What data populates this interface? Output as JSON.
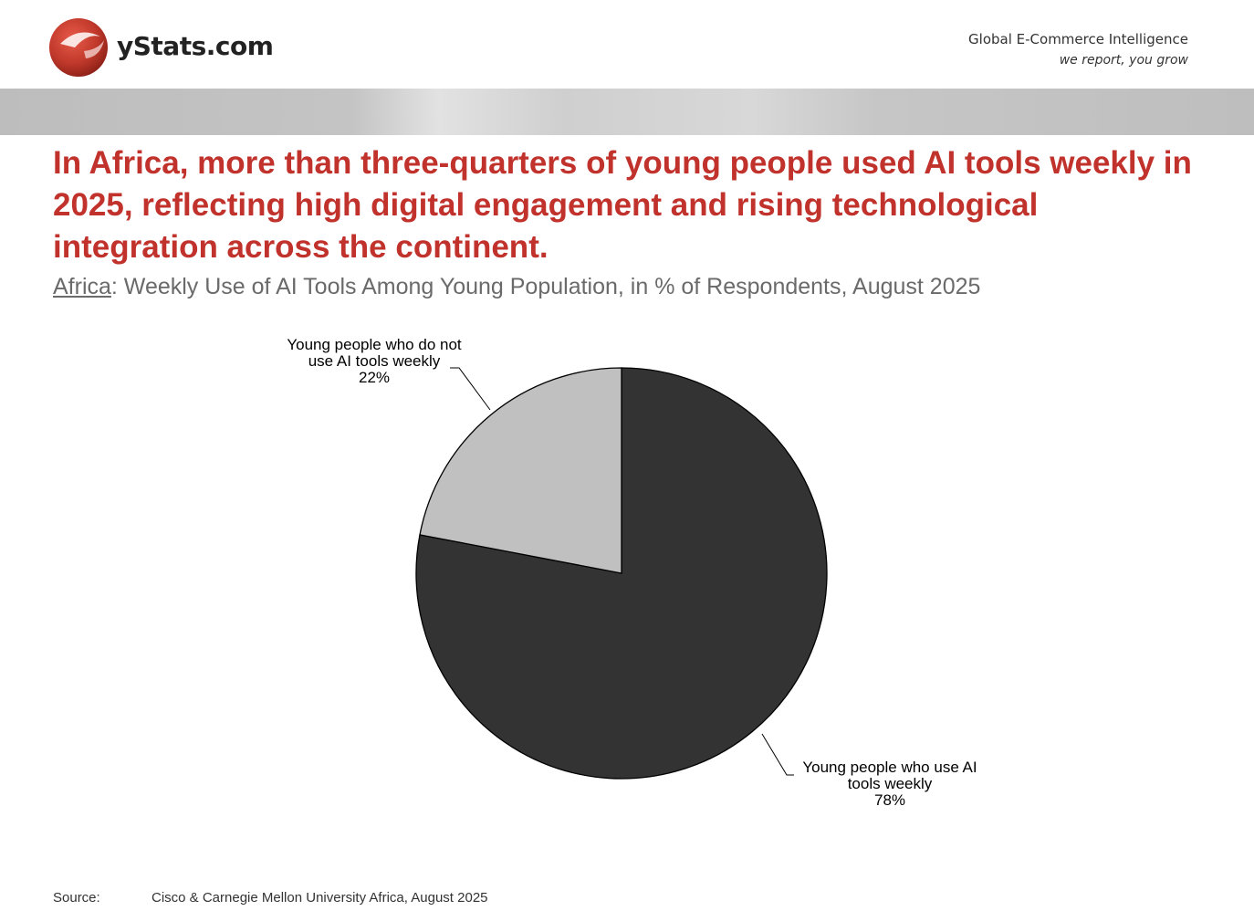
{
  "header": {
    "logo_text": "yStats.com",
    "tagline_1": "Global E-Commerce Intelligence",
    "tagline_2": "we report, you grow"
  },
  "headline": "In Africa, more than three-quarters of young people used AI tools weekly in 2025, reflecting high digital engagement and rising technological integration across the continent.",
  "subtitle": {
    "region": "Africa",
    "rest": ": Weekly Use of AI Tools Among Young Population, in % of Respondents, August 2025"
  },
  "colors": {
    "accent": "#c0322b",
    "slice_dark": "#333333",
    "slice_light": "#c0c0c0"
  },
  "chart_data": {
    "type": "pie",
    "title": "",
    "slices": [
      {
        "label_lines": [
          "Young people who use AI",
          "tools weekly"
        ],
        "value": 78,
        "value_label": "78%",
        "color": "#333333"
      },
      {
        "label_lines": [
          "Young people who do not",
          "use AI tools weekly"
        ],
        "value": 22,
        "value_label": "22%",
        "color": "#c0c0c0"
      }
    ]
  },
  "source": {
    "label": "Source:",
    "text": "Cisco & Carnegie Mellon University Africa, August 2025"
  }
}
